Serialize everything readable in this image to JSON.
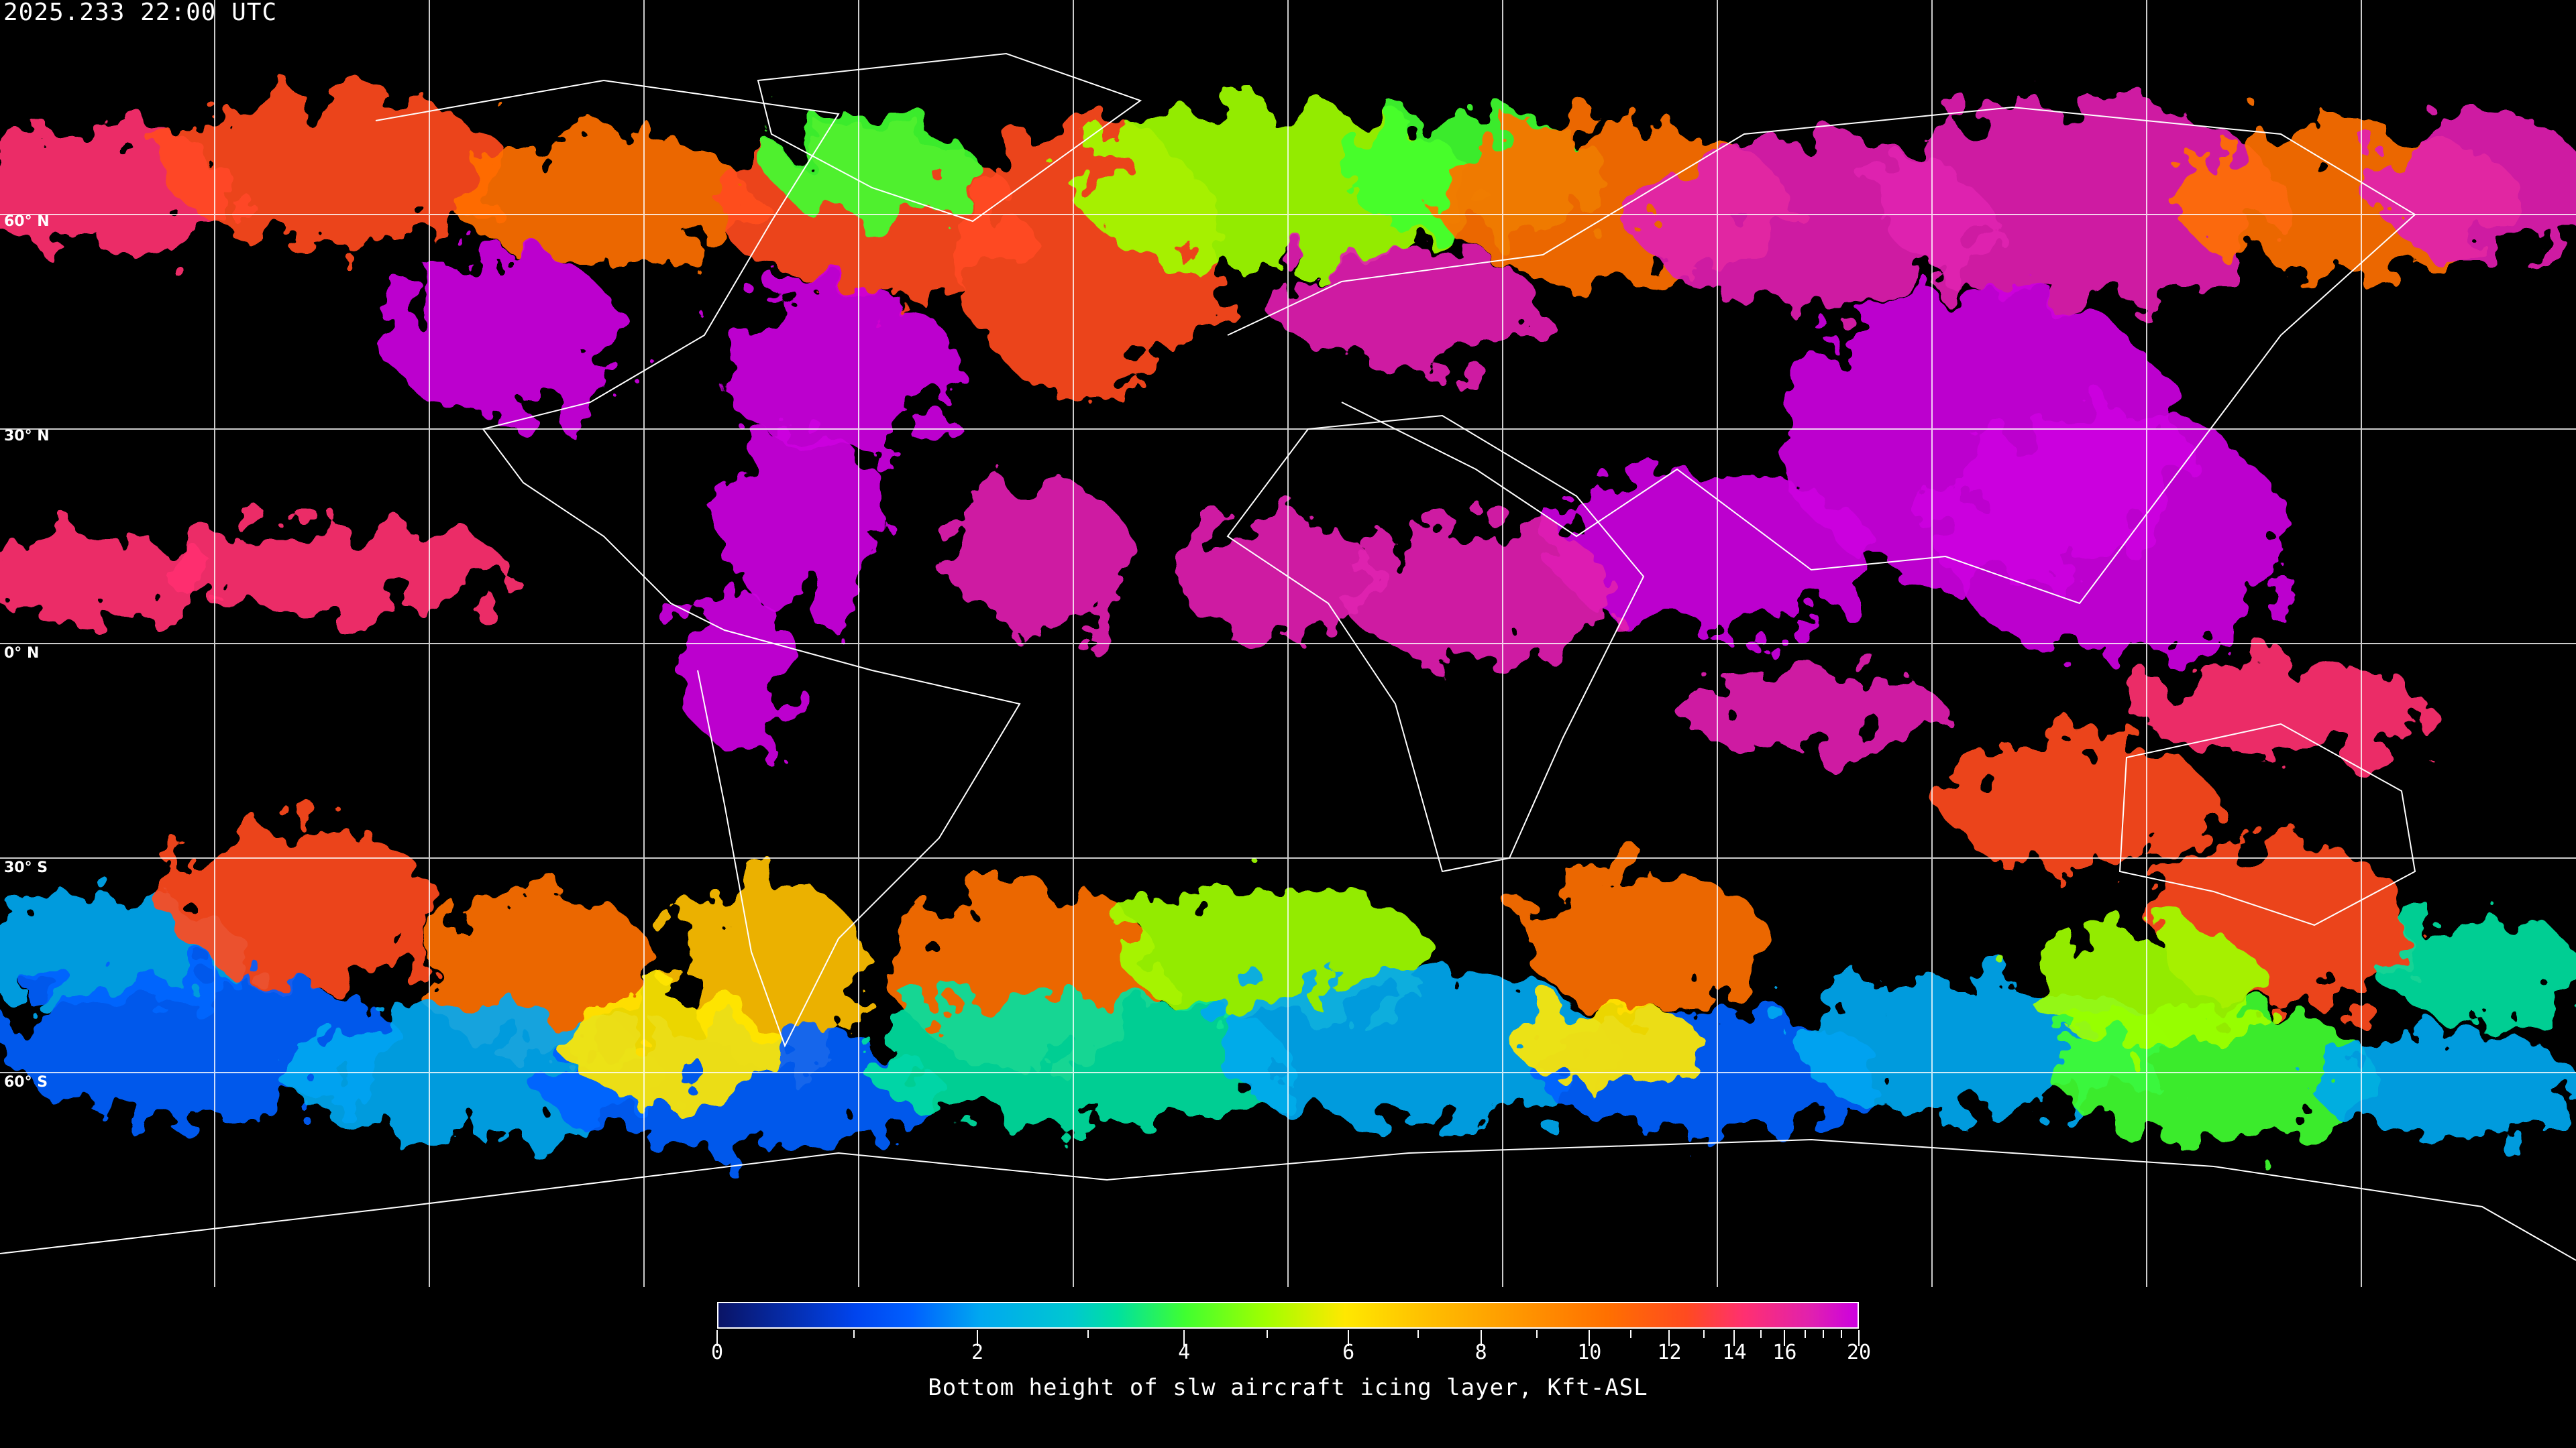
{
  "header": {
    "timestamp": "2025.233 22:00 UTC"
  },
  "map": {
    "projection": "equirectangular",
    "gridlines": "every 30 degrees",
    "lat_labels": [
      "60° N",
      "30° N",
      "0° N",
      "30° S",
      "60° S"
    ],
    "background_color": "#000000",
    "coastline_color": "#ffffff"
  },
  "colorbar": {
    "title": "Bottom height of slw aircraft icing layer, Kft-ASL",
    "major_ticks": [
      "0",
      "2",
      "4",
      "6",
      "8",
      "10",
      "12",
      "14",
      "16",
      "20"
    ],
    "minor_ticks": [
      1,
      3,
      5,
      7,
      9,
      11,
      13,
      15,
      17,
      18,
      19
    ],
    "range": [
      0,
      20
    ],
    "colors": [
      "#0a1466",
      "#0060ff",
      "#00a8f0",
      "#00e0a0",
      "#40ff30",
      "#a0ff00",
      "#ffe800",
      "#ffc000",
      "#ff9800",
      "#ff7000",
      "#ff4a20",
      "#ff3070",
      "#e020b0",
      "#cc00e0"
    ]
  }
}
